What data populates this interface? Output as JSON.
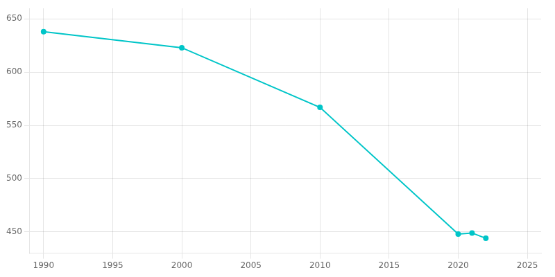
{
  "chart_data": {
    "type": "line",
    "x": [
      1990,
      2000,
      2010,
      2020,
      2021,
      2022
    ],
    "values": [
      638,
      623,
      567,
      448,
      449,
      444
    ],
    "color": "#00C5C8",
    "marker": "circle",
    "xlim": [
      1989,
      2026
    ],
    "xticks": [
      1990,
      1995,
      2000,
      2005,
      2010,
      2015,
      2020,
      2025
    ],
    "ylim": [
      430,
      660
    ],
    "yticks": [
      450,
      500,
      550,
      600,
      650
    ],
    "grid": true
  }
}
